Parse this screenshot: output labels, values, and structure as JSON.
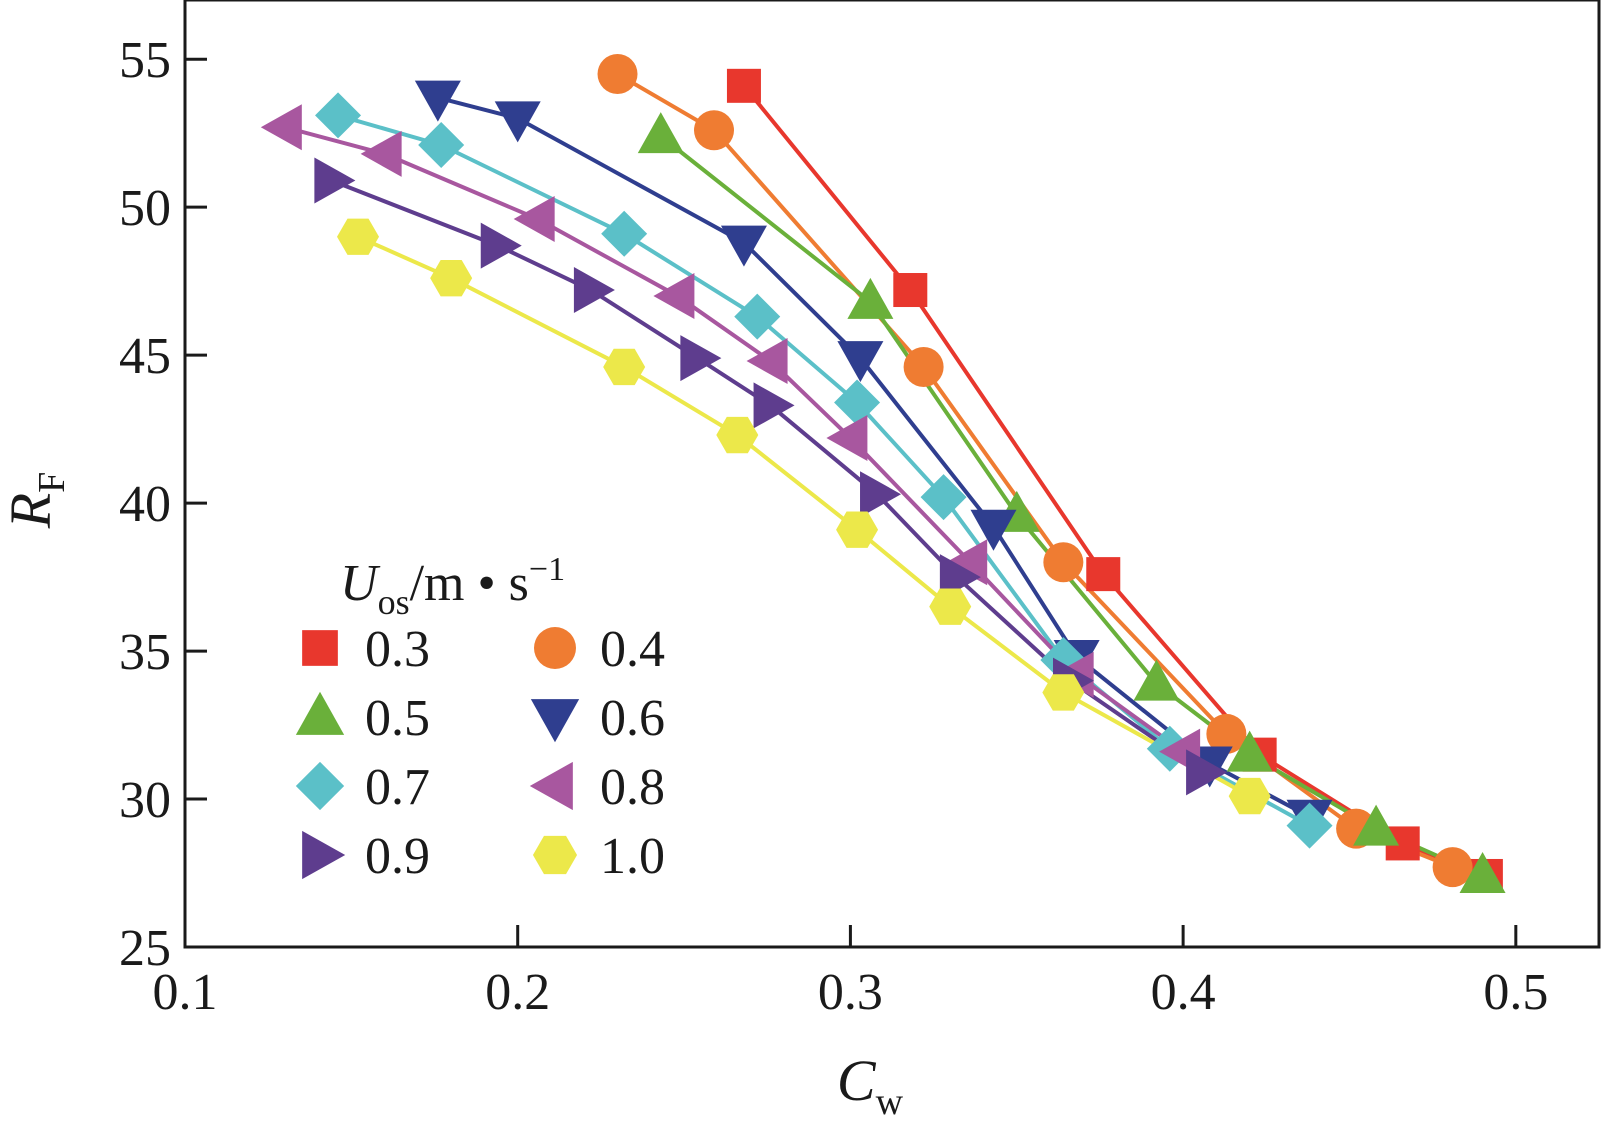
{
  "chart_data": {
    "type": "line",
    "xlabel": {
      "main": "C",
      "sub": "w"
    },
    "ylabel": {
      "main": "R",
      "sub": "F"
    },
    "xlim": [
      0.1,
      0.525
    ],
    "ylim": [
      25,
      57
    ],
    "x_ticks": [
      0.1,
      0.2,
      0.3,
      0.4,
      0.5
    ],
    "x_tick_labels": [
      "0.1",
      "0.2",
      "0.3",
      "0.4",
      "0.5"
    ],
    "y_ticks": [
      25,
      30,
      35,
      40,
      45,
      50,
      55
    ],
    "y_tick_labels": [
      "25",
      "30",
      "35",
      "40",
      "45",
      "50",
      "55"
    ],
    "grid": false,
    "legend": {
      "placement": "bottom-left",
      "title": {
        "main": "U",
        "sub": "os",
        "unit": "/m • s",
        "sup": "−1"
      },
      "columns": 2
    },
    "series": [
      {
        "name": "0.3",
        "color": "#e8372d",
        "marker": "square",
        "x": [
          0.268,
          0.318,
          0.376,
          0.423,
          0.466,
          0.491
        ],
        "y": [
          54.1,
          47.2,
          37.6,
          31.5,
          28.5,
          27.4
        ]
      },
      {
        "name": "0.4",
        "color": "#ef7c32",
        "marker": "circle",
        "x": [
          0.23,
          0.259,
          0.322,
          0.364,
          0.413,
          0.452,
          0.481
        ],
        "y": [
          54.5,
          52.6,
          44.6,
          38.0,
          32.2,
          29.0,
          27.7
        ]
      },
      {
        "name": "0.5",
        "color": "#6ab03a",
        "marker": "triangle-up",
        "x": [
          0.243,
          0.306,
          0.35,
          0.392,
          0.42,
          0.458,
          0.49
        ],
        "y": [
          52.4,
          46.8,
          39.6,
          33.9,
          31.5,
          29.0,
          27.4
        ]
      },
      {
        "name": "0.6",
        "color": "#2f3e8f",
        "marker": "triangle-down",
        "x": [
          0.176,
          0.2,
          0.268,
          0.303,
          0.343,
          0.368,
          0.408,
          0.438
        ],
        "y": [
          53.7,
          53.0,
          48.8,
          44.9,
          39.2,
          34.8,
          31.2,
          29.4
        ]
      },
      {
        "name": "0.7",
        "color": "#5bc0c8",
        "marker": "diamond",
        "x": [
          0.146,
          0.177,
          0.232,
          0.272,
          0.302,
          0.328,
          0.364,
          0.396,
          0.438
        ],
        "y": [
          53.1,
          52.1,
          49.1,
          46.3,
          43.4,
          40.2,
          34.7,
          31.7,
          29.1
        ]
      },
      {
        "name": "0.8",
        "color": "#a8579f",
        "marker": "triangle-left",
        "x": [
          0.13,
          0.16,
          0.206,
          0.248,
          0.276,
          0.3,
          0.336,
          0.368,
          0.4
        ],
        "y": [
          52.7,
          51.8,
          49.6,
          47.0,
          44.8,
          42.2,
          38.0,
          34.2,
          31.6
        ]
      },
      {
        "name": "0.9",
        "color": "#5e3d8e",
        "marker": "triangle-right",
        "x": [
          0.144,
          0.194,
          0.222,
          0.254,
          0.276,
          0.308,
          0.332,
          0.366,
          0.406
        ],
        "y": [
          50.9,
          48.7,
          47.2,
          44.9,
          43.3,
          40.3,
          37.5,
          34.0,
          30.9
        ]
      },
      {
        "name": "1.0",
        "color": "#ece84a",
        "marker": "hexagon",
        "x": [
          0.152,
          0.18,
          0.232,
          0.266,
          0.302,
          0.33,
          0.364,
          0.42
        ],
        "y": [
          49.0,
          47.6,
          44.6,
          42.3,
          39.1,
          36.5,
          33.6,
          30.1
        ]
      }
    ]
  }
}
